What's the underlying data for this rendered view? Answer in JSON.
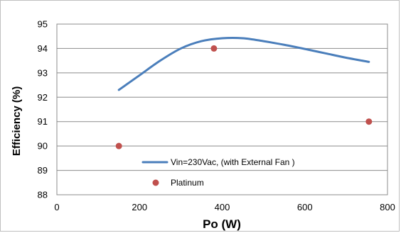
{
  "chart_data": {
    "type": "line",
    "title": "",
    "xlabel": "Po (W)",
    "ylabel": "Efficiency (%)",
    "xlim": [
      0,
      800
    ],
    "ylim": [
      88,
      95
    ],
    "x_ticks": [
      "0",
      "200",
      "400",
      "600",
      "800"
    ],
    "y_ticks": [
      "88",
      "89",
      "90",
      "91",
      "92",
      "93",
      "94",
      "95"
    ],
    "grid": "horizontal",
    "legend_placement": "inside-bottom-left",
    "series": [
      {
        "name": "Vin=230Vac, (with External Fan )",
        "kind": "line",
        "color": "#4a7ebb",
        "x": [
          150,
          200,
          250,
          300,
          350,
          400,
          450,
          500,
          550,
          600,
          650,
          700,
          755
        ],
        "y": [
          92.3,
          92.9,
          93.5,
          94.0,
          94.3,
          94.42,
          94.42,
          94.3,
          94.15,
          93.98,
          93.8,
          93.62,
          93.45
        ]
      },
      {
        "name": "Platinum",
        "kind": "scatter",
        "color": "#c0504d",
        "x": [
          150,
          380,
          755
        ],
        "y": [
          90,
          94,
          91
        ]
      }
    ]
  }
}
